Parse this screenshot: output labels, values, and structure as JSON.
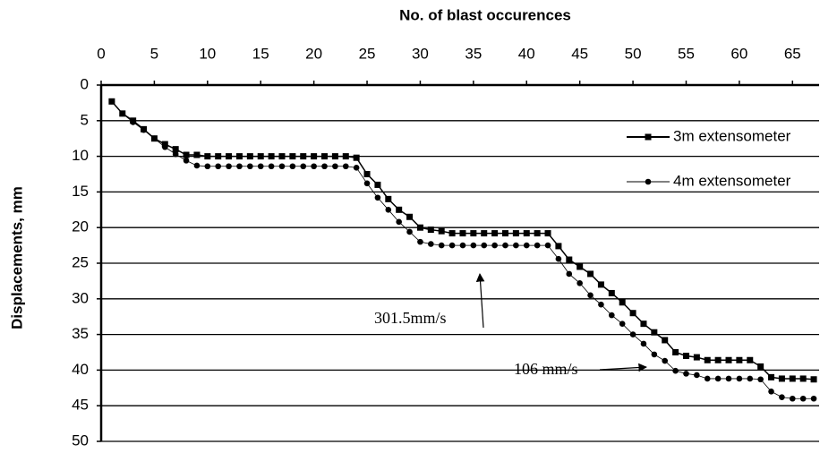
{
  "chart_data": {
    "type": "line",
    "x_label": "No. of blast occurences",
    "y_label": "Displacements, mm",
    "xlim": [
      0,
      67.5
    ],
    "ylim": [
      0,
      50
    ],
    "y_inverted": true,
    "x_axis_position": "top",
    "xticks": [
      0,
      5,
      10,
      15,
      20,
      25,
      30,
      35,
      40,
      45,
      50,
      55,
      60,
      65
    ],
    "yticks": [
      0,
      5,
      10,
      15,
      20,
      25,
      30,
      35,
      40,
      45,
      50
    ],
    "grid": true,
    "legend": "right",
    "annotations": [
      "301.5mm/s",
      "106 mm/s"
    ],
    "x": [
      1,
      2,
      3,
      4,
      5,
      6,
      7,
      8,
      9,
      10,
      11,
      12,
      13,
      14,
      15,
      16,
      17,
      18,
      19,
      20,
      21,
      22,
      23,
      24,
      25,
      26,
      27,
      28,
      29,
      30,
      31,
      32,
      33,
      34,
      35,
      36,
      37,
      38,
      39,
      40,
      41,
      42,
      43,
      44,
      45,
      46,
      47,
      48,
      49,
      50,
      51,
      52,
      53,
      54,
      55,
      56,
      57,
      58,
      59,
      60,
      61,
      62,
      63,
      64,
      65,
      66,
      67
    ],
    "series": [
      {
        "name": "3m extensometer",
        "color": "#000000",
        "marker": "square",
        "values": [
          2.3,
          4,
          5,
          6.2,
          7.5,
          8.3,
          9,
          9.8,
          9.8,
          10,
          10,
          10,
          10,
          10,
          10,
          10,
          10,
          10,
          10,
          10,
          10,
          10,
          10,
          10.2,
          12.5,
          14,
          16,
          17.5,
          18.5,
          20,
          20.3,
          20.5,
          20.8,
          20.8,
          20.8,
          20.8,
          20.8,
          20.8,
          20.8,
          20.8,
          20.8,
          20.8,
          22.6,
          24.5,
          25.5,
          26.5,
          28,
          29.2,
          30.5,
          32,
          33.5,
          34.7,
          35.8,
          37.5,
          38,
          38.2,
          38.6,
          38.6,
          38.6,
          38.6,
          38.6,
          39.5,
          41,
          41.2,
          41.2,
          41.2,
          41.3
        ]
      },
      {
        "name": "4m extensometer",
        "color": "#000000",
        "marker": "circle",
        "values": [
          2.3,
          4,
          5.2,
          6.3,
          7.5,
          8.7,
          9.7,
          10.6,
          11.3,
          11.4,
          11.4,
          11.4,
          11.4,
          11.4,
          11.4,
          11.4,
          11.4,
          11.4,
          11.4,
          11.4,
          11.4,
          11.4,
          11.4,
          11.6,
          13.8,
          15.8,
          17.5,
          19.2,
          20.6,
          22,
          22.3,
          22.5,
          22.5,
          22.5,
          22.5,
          22.5,
          22.5,
          22.5,
          22.5,
          22.5,
          22.5,
          22.5,
          24.4,
          26.5,
          27.8,
          29.5,
          30.8,
          32.3,
          33.5,
          35,
          36.3,
          37.8,
          38.7,
          40.1,
          40.5,
          40.7,
          41.2,
          41.2,
          41.2,
          41.2,
          41.2,
          41.3,
          43,
          43.8,
          44,
          44,
          44
        ]
      }
    ]
  }
}
